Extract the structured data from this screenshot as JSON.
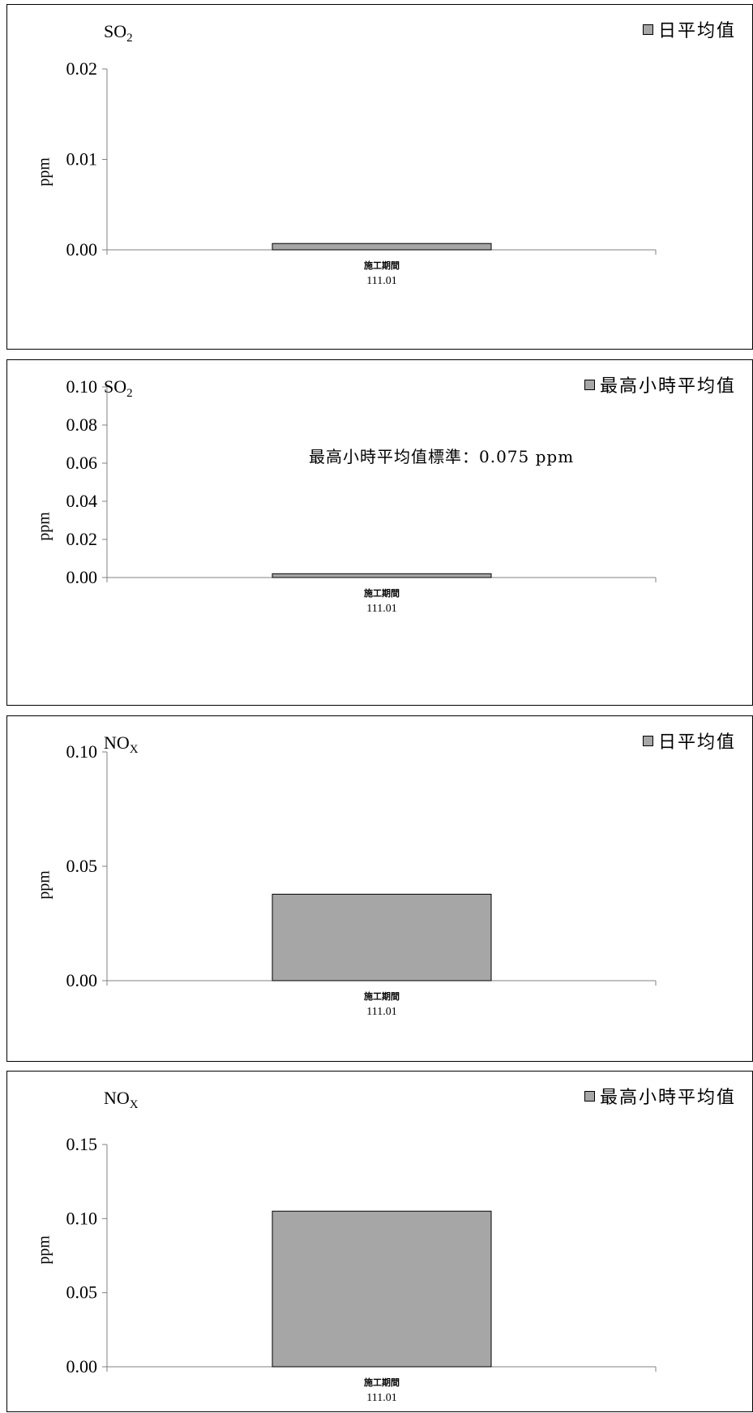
{
  "chart_data": [
    {
      "type": "bar",
      "title": "SO",
      "title_sub": "2",
      "ylabel": "ppm",
      "legend": "日平均值",
      "legend_position": "top-right",
      "categories": [
        "施工期間"
      ],
      "category_sub": [
        "111.01"
      ],
      "series": [
        {
          "name": "日平均值",
          "values": [
            0.0007
          ]
        }
      ],
      "ylim": [
        0,
        0.02
      ],
      "yticks": [
        "0.00",
        "0.01",
        "0.02"
      ],
      "annotation": "",
      "grid": false,
      "colors": {
        "bar": "#a6a6a6",
        "axis": "#808080"
      }
    },
    {
      "type": "bar",
      "title": "SO",
      "title_sub": "2",
      "ylabel": "ppm",
      "legend": "最高小時平均值",
      "legend_position": "top-right",
      "categories": [
        "施工期間"
      ],
      "category_sub": [
        "111.01"
      ],
      "series": [
        {
          "name": "最高小時平均值",
          "values": [
            0.002
          ]
        }
      ],
      "ylim": [
        0,
        0.1
      ],
      "yticks": [
        "0.00",
        "0.02",
        "0.04",
        "0.06",
        "0.08",
        "0.10"
      ],
      "annotation": "最高小時平均值標準：0.075 ppm",
      "grid": false,
      "colors": {
        "bar": "#a6a6a6",
        "axis": "#808080"
      }
    },
    {
      "type": "bar",
      "title": "NO",
      "title_sub": "X",
      "ylabel": "ppm",
      "legend": "日平均值",
      "legend_position": "top-right",
      "categories": [
        "施工期間"
      ],
      "category_sub": [
        "111.01"
      ],
      "series": [
        {
          "name": "日平均值",
          "values": [
            0.0378
          ]
        }
      ],
      "ylim": [
        0,
        0.1
      ],
      "yticks": [
        "0.00",
        "0.05",
        "0.10"
      ],
      "annotation": "",
      "grid": false,
      "colors": {
        "bar": "#a6a6a6",
        "axis": "#808080"
      }
    },
    {
      "type": "bar",
      "title": "NO",
      "title_sub": "X",
      "ylabel": "ppm",
      "legend": "最高小時平均值",
      "legend_position": "top-right",
      "categories": [
        "施工期間"
      ],
      "category_sub": [
        "111.01"
      ],
      "series": [
        {
          "name": "最高小時平均值",
          "values": [
            0.105
          ]
        }
      ],
      "ylim": [
        0,
        0.15
      ],
      "yticks": [
        "0.00",
        "0.05",
        "0.10",
        "0.15"
      ],
      "annotation": "",
      "grid": false,
      "colors": {
        "bar": "#a6a6a6",
        "axis": "#808080"
      }
    }
  ]
}
